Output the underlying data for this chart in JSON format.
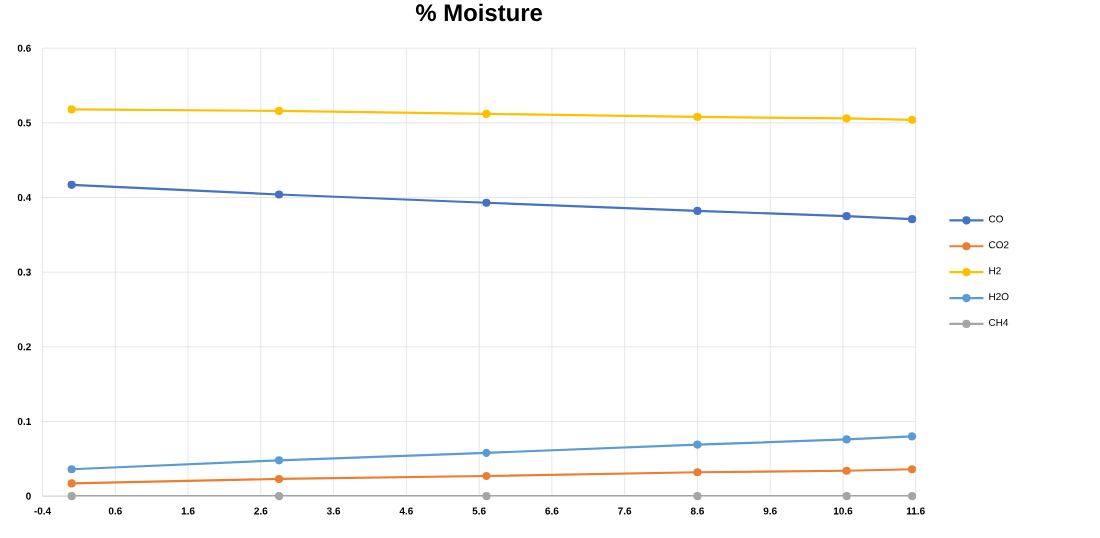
{
  "chart_data": {
    "type": "line",
    "title": "% Moisture",
    "x": [
      0,
      2.85,
      5.7,
      8.6,
      10.65,
      11.55
    ],
    "series": [
      {
        "name": "CO",
        "color": "#4472c4",
        "values": [
          0.417,
          0.404,
          0.393,
          0.382,
          0.375,
          0.371
        ]
      },
      {
        "name": "CO2",
        "color": "#ed7d31",
        "values": [
          0.017,
          0.023,
          0.027,
          0.032,
          0.034,
          0.036
        ]
      },
      {
        "name": "H2",
        "color": "#ffc000",
        "values": [
          0.518,
          0.516,
          0.512,
          0.508,
          0.506,
          0.504
        ]
      },
      {
        "name": "H2O",
        "color": "#5b9bd5",
        "values": [
          0.036,
          0.048,
          0.058,
          0.069,
          0.076,
          0.08
        ]
      },
      {
        "name": "CH4",
        "color": "#a5a5a5",
        "values": [
          0,
          0,
          0,
          0,
          0,
          0
        ]
      }
    ],
    "xlim": [
      -0.4,
      11.6
    ],
    "xticks": [
      -0.4,
      0.6,
      1.6,
      2.6,
      3.6,
      4.6,
      5.6,
      6.6,
      7.6,
      8.6,
      9.6,
      10.6,
      11.6
    ],
    "ylim": [
      0,
      0.6
    ],
    "yticks": [
      0,
      0.1,
      0.2,
      0.3,
      0.4,
      0.5,
      0.6
    ],
    "grid": true,
    "legend": "right",
    "marker": "circle",
    "line_style": "solid"
  }
}
